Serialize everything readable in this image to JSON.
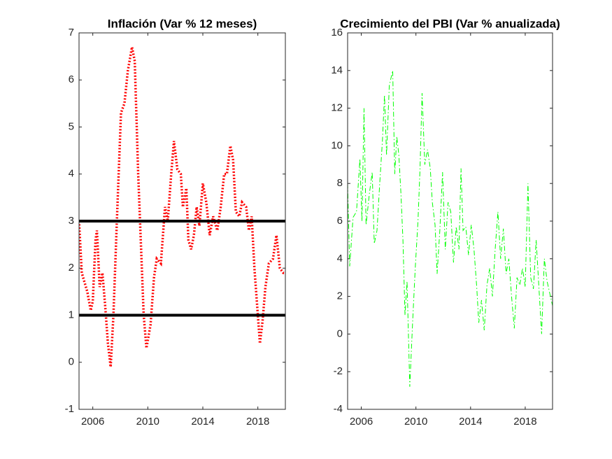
{
  "chart_data": [
    {
      "type": "line",
      "title": "Inflación (Var % 12 meses)",
      "x": [
        2005.0,
        2005.2,
        2005.6,
        2005.85,
        2006.0,
        2006.2,
        2006.3,
        2006.5,
        2006.7,
        2006.9,
        2007.1,
        2007.3,
        2007.5,
        2007.75,
        2008.05,
        2008.3,
        2008.55,
        2008.85,
        2009.05,
        2009.3,
        2009.5,
        2009.7,
        2009.9,
        2010.2,
        2010.45,
        2010.65,
        2010.95,
        2011.25,
        2011.45,
        2011.7,
        2011.9,
        2012.15,
        2012.4,
        2012.55,
        2012.8,
        2012.95,
        2013.15,
        2013.35,
        2013.55,
        2013.75,
        2014.0,
        2014.25,
        2014.5,
        2014.75,
        2015.05,
        2015.3,
        2015.55,
        2015.75,
        2016.0,
        2016.2,
        2016.4,
        2016.65,
        2016.85,
        2017.15,
        2017.35,
        2017.55,
        2017.75,
        2017.95,
        2018.15,
        2018.35,
        2018.55,
        2018.8,
        2019.1,
        2019.35,
        2019.6,
        2019.85,
        2020.0
      ],
      "series": [
        {
          "color": "#ff0000",
          "linestyle": "dotted",
          "values": [
            3.0,
            1.9,
            1.5,
            1.1,
            1.3,
            2.6,
            2.8,
            1.6,
            1.9,
            1.2,
            0.4,
            -0.1,
            1.0,
            3.0,
            5.3,
            5.5,
            6.2,
            6.7,
            6.4,
            4.0,
            2.5,
            1.0,
            0.3,
            0.8,
            1.8,
            2.2,
            2.1,
            3.3,
            3.0,
            4.0,
            4.7,
            4.1,
            4.0,
            3.3,
            3.7,
            2.6,
            2.4,
            2.7,
            3.3,
            2.9,
            3.8,
            3.4,
            2.7,
            3.1,
            2.8,
            3.3,
            4.0,
            4.0,
            4.6,
            4.3,
            3.2,
            3.1,
            3.4,
            3.3,
            2.8,
            3.1,
            2.0,
            1.2,
            0.4,
            0.9,
            1.6,
            2.1,
            2.2,
            2.7,
            2.0,
            1.9,
            1.9
          ]
        }
      ],
      "reference_lines": [
        1,
        3
      ],
      "reference_color": "#000000",
      "xlim": [
        2005,
        2020
      ],
      "xticks": [
        2006,
        2010,
        2014,
        2018
      ],
      "ylim": [
        -1,
        7
      ],
      "yticks": [
        -1,
        0,
        1,
        2,
        3,
        4,
        5,
        6,
        7
      ]
    },
    {
      "type": "line",
      "title": "Crecimiento del PBI (Var % anualizada)",
      "x": [
        2005.0,
        2005.15,
        2005.4,
        2005.65,
        2005.9,
        2006.05,
        2006.2,
        2006.35,
        2006.6,
        2006.8,
        2006.95,
        2007.15,
        2007.35,
        2007.55,
        2007.7,
        2007.85,
        2008.05,
        2008.3,
        2008.45,
        2008.6,
        2008.75,
        2008.9,
        2009.05,
        2009.2,
        2009.35,
        2009.55,
        2009.75,
        2009.95,
        2010.15,
        2010.3,
        2010.45,
        2010.65,
        2010.85,
        2011.05,
        2011.2,
        2011.4,
        2011.55,
        2011.75,
        2011.95,
        2012.15,
        2012.35,
        2012.55,
        2012.75,
        2012.95,
        2013.15,
        2013.3,
        2013.45,
        2013.65,
        2013.85,
        2014.05,
        2014.25,
        2014.45,
        2014.6,
        2014.8,
        2015.0,
        2015.2,
        2015.4,
        2015.6,
        2015.8,
        2016.0,
        2016.2,
        2016.4,
        2016.6,
        2016.8,
        2017.0,
        2017.2,
        2017.4,
        2017.6,
        2017.8,
        2018.0,
        2018.2,
        2018.4,
        2018.6,
        2018.8,
        2019.0,
        2019.2,
        2019.4,
        2019.6,
        2020.0
      ],
      "series": [
        {
          "color": "#00ff00",
          "linestyle": "dashdot",
          "values": [
            8.0,
            3.6,
            6.2,
            6.5,
            9.3,
            6.0,
            12.0,
            5.8,
            7.5,
            8.6,
            4.8,
            5.5,
            8.0,
            10.3,
            12.7,
            9.5,
            13.2,
            14.0,
            8.5,
            10.5,
            9.5,
            7.5,
            5.0,
            1.0,
            2.8,
            -2.8,
            0.5,
            3.5,
            6.0,
            8.8,
            12.8,
            9.0,
            9.8,
            8.8,
            7.0,
            5.8,
            3.2,
            5.5,
            8.6,
            4.5,
            7.0,
            6.5,
            3.8,
            5.7,
            4.5,
            8.8,
            5.5,
            5.7,
            4.2,
            5.8,
            4.5,
            2.5,
            0.6,
            1.8,
            0.2,
            2.6,
            3.5,
            2.0,
            4.5,
            6.5,
            4.0,
            5.6,
            3.2,
            4.0,
            2.0,
            0.3,
            3.0,
            2.6,
            3.5,
            2.5,
            8.0,
            3.0,
            2.4,
            5.0,
            2.5,
            0.0,
            4.0,
            2.8,
            1.5
          ]
        }
      ],
      "xlim": [
        2005,
        2020
      ],
      "xticks": [
        2006,
        2010,
        2014,
        2018
      ],
      "ylim": [
        -4,
        16
      ],
      "yticks": [
        -4,
        -2,
        0,
        2,
        4,
        6,
        8,
        10,
        12,
        14,
        16
      ]
    }
  ]
}
